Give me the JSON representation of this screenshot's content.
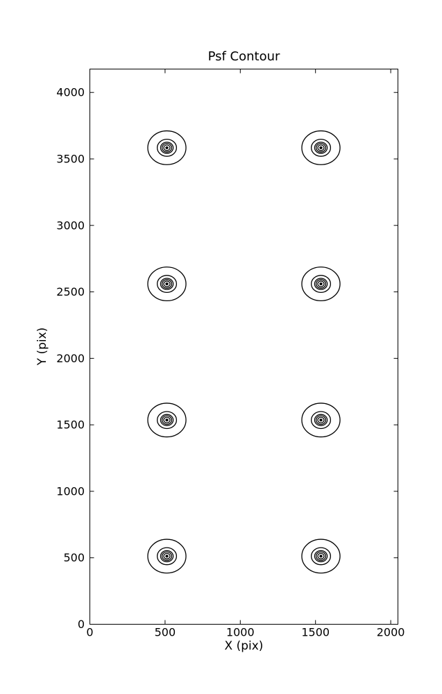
{
  "page": {
    "background_color": "#ffffff",
    "foreground_color": "#000000"
  },
  "chart_data": {
    "type": "contour",
    "title": "Psf Contour",
    "xlabel": "X (pix)",
    "ylabel": "Y (pix)",
    "xlim": [
      0,
      2048
    ],
    "ylim": [
      0,
      4176
    ],
    "xticks": [
      0,
      500,
      1000,
      1500,
      2000
    ],
    "yticks": [
      0,
      500,
      1000,
      1500,
      2000,
      2500,
      3000,
      3500,
      4000
    ],
    "grid": false,
    "legend": "none",
    "tick_direction": "in",
    "tick_sides": [
      "bottom",
      "top",
      "left",
      "right"
    ],
    "line_color": "#000000",
    "spot_centers": [
      {
        "x": 512,
        "y": 512
      },
      {
        "x": 1536,
        "y": 512
      },
      {
        "x": 512,
        "y": 1536
      },
      {
        "x": 1536,
        "y": 1536
      },
      {
        "x": 512,
        "y": 2560
      },
      {
        "x": 1536,
        "y": 2560
      },
      {
        "x": 512,
        "y": 3584
      },
      {
        "x": 1536,
        "y": 3584
      }
    ],
    "contour_ring_radii_pix": [
      127,
      64,
      42,
      32,
      21
    ],
    "core_dot_radius_pix": 8
  }
}
